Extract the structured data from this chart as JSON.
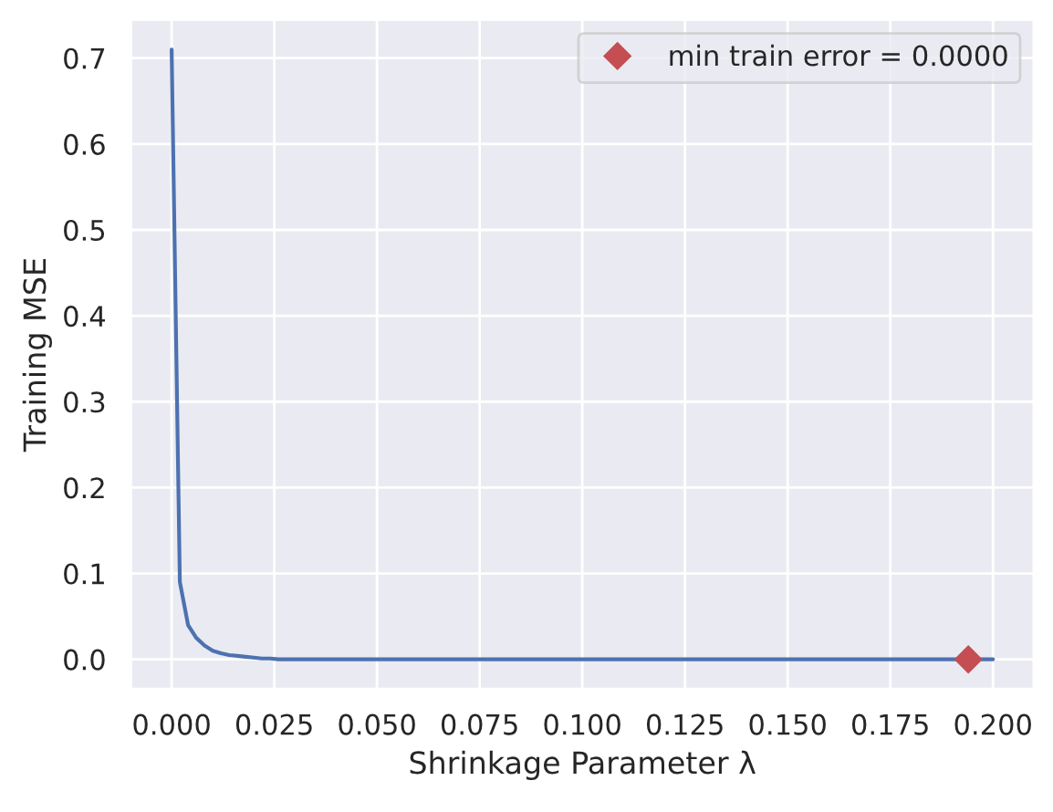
{
  "chart_data": {
    "type": "line",
    "xlabel": "Shrinkage Parameter λ",
    "ylabel": "Training MSE",
    "series": [
      {
        "color": "#4c72b0",
        "marker": "none",
        "line_style": "solid",
        "x": [
          0,
          0.002,
          0.004,
          0.006,
          0.008,
          0.01,
          0.012,
          0.014,
          0.016,
          0.018,
          0.02,
          0.022,
          0.024,
          0.026,
          0.028,
          0.2
        ],
        "values": [
          0.71,
          0.09,
          0.04,
          0.025,
          0.016,
          0.01,
          0.007,
          0.005,
          0.004,
          0.003,
          0.002,
          0.001,
          0.001,
          0,
          0,
          0
        ]
      },
      {
        "type": "scatter",
        "name": "min train error = 0.0000",
        "color": "#c44e52",
        "marker": "diamond",
        "x": [
          0.194
        ],
        "values": [
          0
        ]
      }
    ],
    "xlim": [
      -0.01,
      0.21
    ],
    "ylim": [
      -0.035,
      0.745
    ],
    "xticks": [
      {
        "value": 0,
        "label": "0.000"
      },
      {
        "value": 0.025,
        "label": "0.025"
      },
      {
        "value": 0.05,
        "label": "0.050"
      },
      {
        "value": 0.075,
        "label": "0.075"
      },
      {
        "value": 0.1,
        "label": "0.100"
      },
      {
        "value": 0.125,
        "label": "0.125"
      },
      {
        "value": 0.15,
        "label": "0.150"
      },
      {
        "value": 0.175,
        "label": "0.175"
      },
      {
        "value": 0.2,
        "label": "0.200"
      }
    ],
    "yticks": [
      {
        "value": 0,
        "label": "0.0"
      },
      {
        "value": 0.1,
        "label": "0.1"
      },
      {
        "value": 0.2,
        "label": "0.2"
      },
      {
        "value": 0.3,
        "label": "0.3"
      },
      {
        "value": 0.4,
        "label": "0.4"
      },
      {
        "value": 0.5,
        "label": "0.5"
      },
      {
        "value": 0.6,
        "label": "0.6"
      },
      {
        "value": 0.7,
        "label": "0.7"
      }
    ],
    "grid": true,
    "legend": "top right"
  }
}
